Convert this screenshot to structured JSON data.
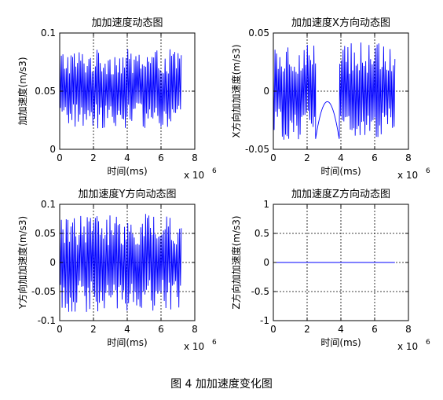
{
  "figure_caption": "图 4  加加速度变化图",
  "line_color": "#0000ff",
  "chart_data": [
    {
      "type": "line",
      "title": "加加速度动态图",
      "xlabel": "时间(ms)",
      "ylabel": "加加速度(m/s3)",
      "x_exponent_label": "x 10",
      "x_exponent": "6",
      "xlim": [
        0,
        8
      ],
      "ylim": [
        0,
        0.1
      ],
      "xticks": [
        "0",
        "2",
        "4",
        "6",
        "8"
      ],
      "yticks": [
        "0",
        "0.05",
        "0.1"
      ],
      "ytick_values": [
        0,
        0.05,
        0.1
      ],
      "grid": true,
      "series": [
        {
          "x_range": [
            0,
            7.2
          ],
          "pattern": "oscillation",
          "center": 0.052,
          "amplitude": 0.034
        }
      ]
    },
    {
      "type": "line",
      "title": "加加速度X方向动态图",
      "xlabel": "时间(ms)",
      "ylabel": "X方向加加速度(m/s3)",
      "x_exponent_label": "x 10",
      "x_exponent": "6",
      "xlim": [
        0,
        8
      ],
      "ylim": [
        -0.05,
        0.05
      ],
      "xticks": [
        "0",
        "2",
        "4",
        "6",
        "8"
      ],
      "yticks": [
        "-0.05",
        "0",
        "0.05"
      ],
      "ytick_values": [
        -0.05,
        0,
        0.05
      ],
      "grid": true,
      "series": [
        {
          "x_range": [
            0,
            7.2
          ],
          "pattern": "oscillation_with_arch",
          "center": 0.0,
          "amplitude": 0.042,
          "arch": {
            "x_start": 2.5,
            "x_end": 3.9,
            "min": -0.041,
            "peak": -0.009
          }
        }
      ]
    },
    {
      "type": "line",
      "title": "加加速度Y方向动态图",
      "xlabel": "时间(ms)",
      "ylabel": "Y方向加加速度(m/s3)",
      "x_exponent_label": "x 10",
      "x_exponent": "6",
      "xlim": [
        0,
        8
      ],
      "ylim": [
        -0.1,
        0.1
      ],
      "xticks": [
        "0",
        "2",
        "4",
        "6",
        "8"
      ],
      "yticks": [
        "-0.1",
        "-0.05",
        "0",
        "0.05",
        "0.1"
      ],
      "ytick_values": [
        -0.1,
        -0.05,
        0,
        0.05,
        0.1
      ],
      "grid": true,
      "series": [
        {
          "x_range": [
            0,
            7.2
          ],
          "pattern": "oscillation",
          "center": 0.0,
          "amplitude": 0.085
        }
      ]
    },
    {
      "type": "line",
      "title": "加加速度Z方向动态图",
      "xlabel": "时间(ms)",
      "ylabel": "Z方向加加速度(m/s3)",
      "x_exponent_label": "x 10",
      "x_exponent": "6",
      "xlim": [
        0,
        8
      ],
      "ylim": [
        -1,
        1
      ],
      "xticks": [
        "0",
        "2",
        "4",
        "6",
        "8"
      ],
      "yticks": [
        "-1",
        "-0.5",
        "0",
        "0.5",
        "1"
      ],
      "ytick_values": [
        -1,
        -0.5,
        0,
        0.5,
        1
      ],
      "grid": true,
      "series": [
        {
          "x_range": [
            0,
            7.2
          ],
          "pattern": "flat",
          "center": 0.0,
          "amplitude": 0
        }
      ]
    }
  ]
}
